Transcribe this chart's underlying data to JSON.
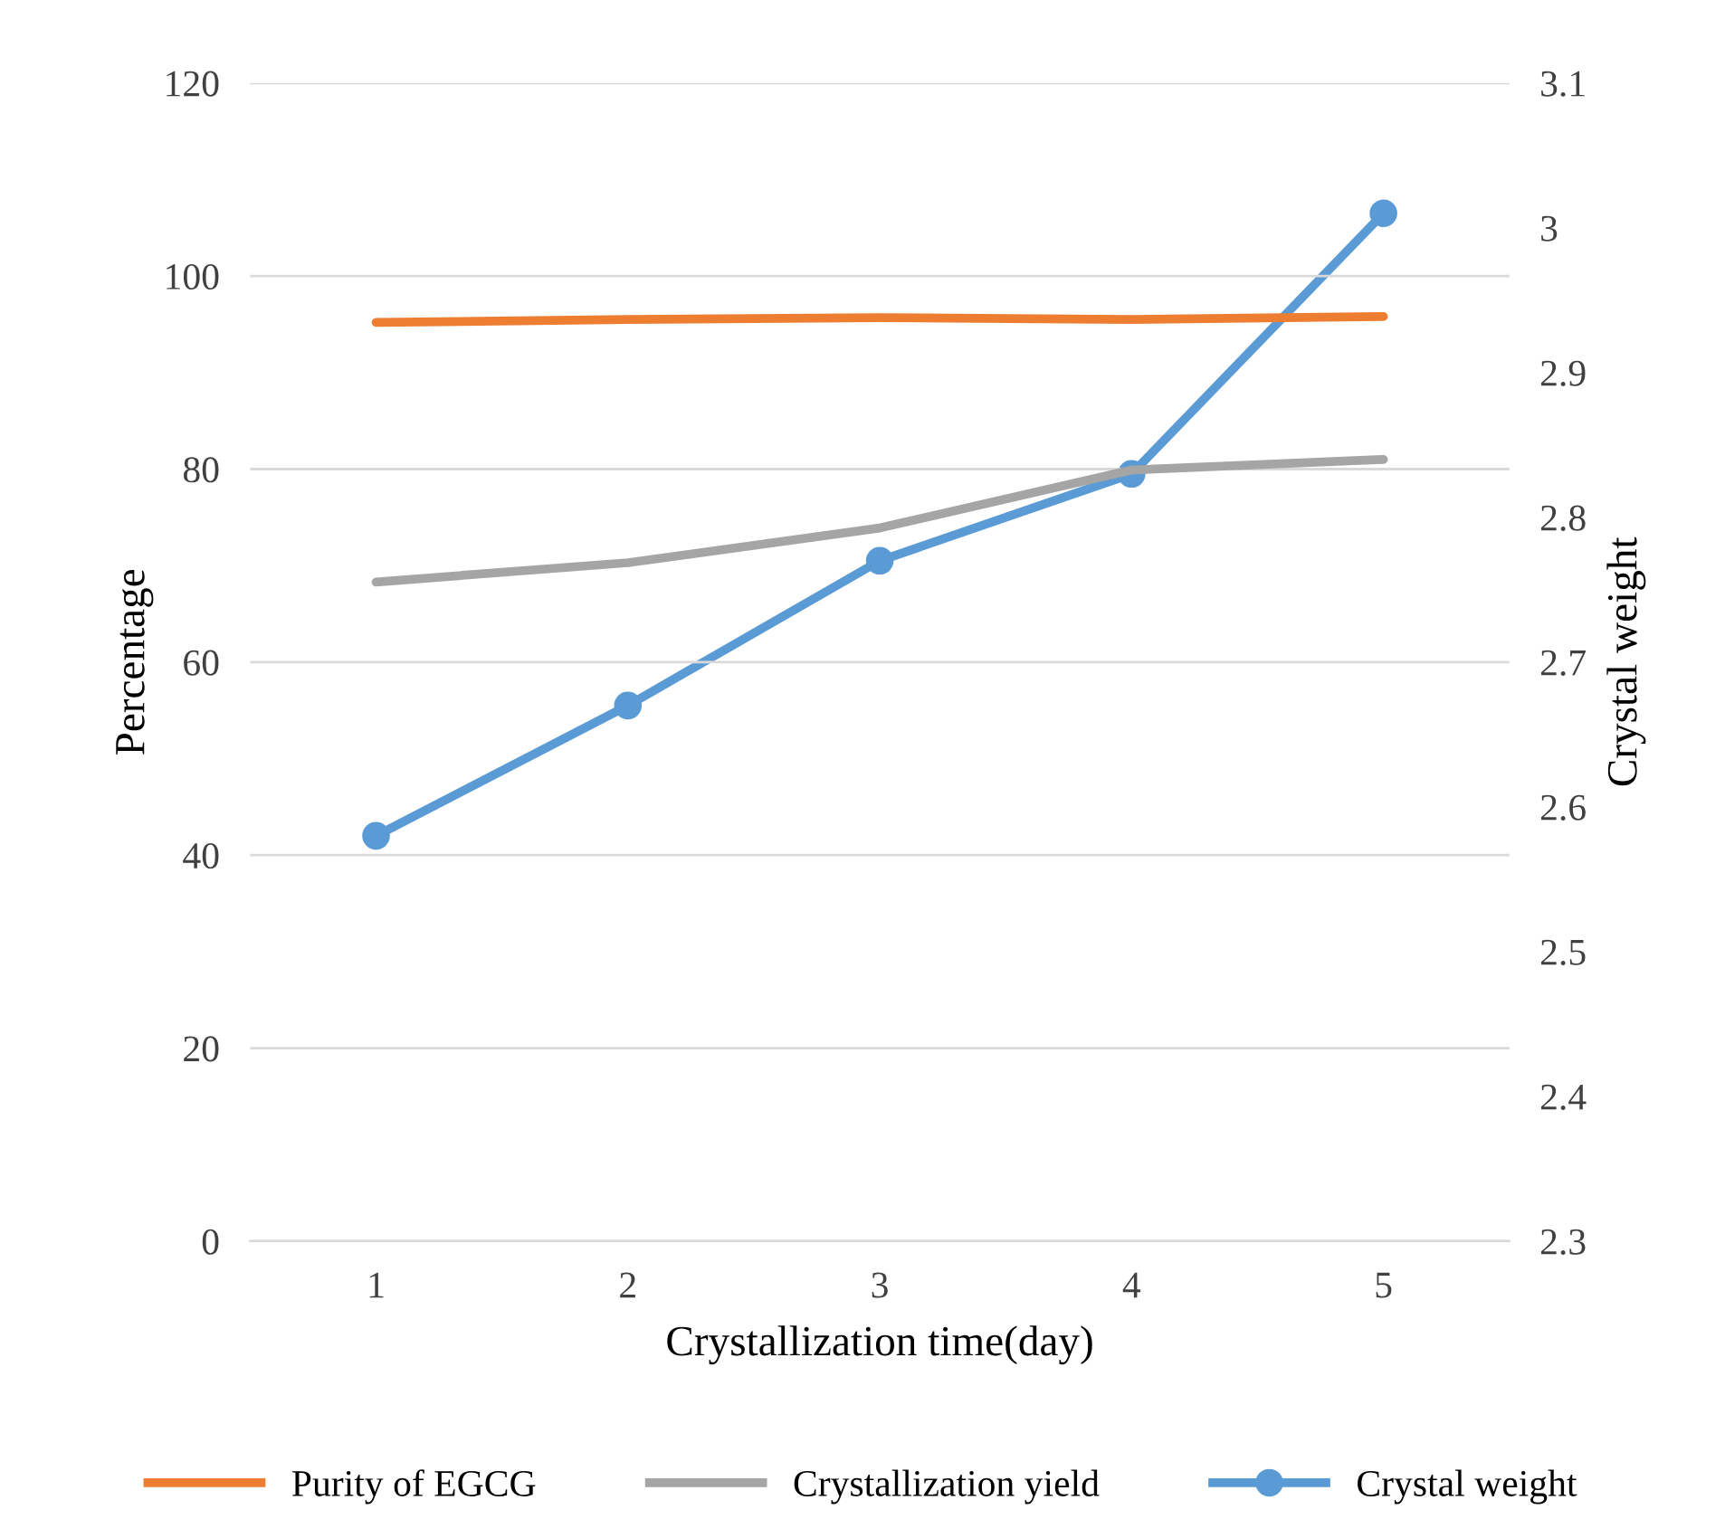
{
  "chart_data": {
    "type": "line",
    "xlabel": "Crystallization time(day)",
    "ylabel": "Percentage",
    "y2label": "Crystal weight",
    "categories": [
      "1",
      "2",
      "3",
      "4",
      "5"
    ],
    "series": [
      {
        "name": "Purity of EGCG",
        "color": "#ed7d31",
        "values": [
          95.2,
          95.5,
          95.7,
          95.5,
          95.8
        ],
        "marker": "none"
      },
      {
        "name": "Crystallization yield",
        "color": "#a5a5a5",
        "values": [
          68.3,
          70.3,
          73.9,
          79.9,
          81.0
        ],
        "marker": "none"
      },
      {
        "name": "Crystal weight",
        "color": "#5b9bd5",
        "values": [
          2.58,
          2.67,
          2.77,
          2.83,
          3.01
        ],
        "axis": "y2",
        "marker": "circle"
      }
    ],
    "ylim": [
      0,
      120
    ],
    "yticks": [
      0,
      20,
      40,
      60,
      80,
      100,
      120
    ],
    "y2lim": [
      2.3,
      3.1
    ],
    "y2ticks": [
      {
        "value": 2.3,
        "label": "2.3"
      },
      {
        "value": 2.4,
        "label": "2.4"
      },
      {
        "value": 2.5,
        "label": "2.5"
      },
      {
        "value": 2.6,
        "label": "2.6"
      },
      {
        "value": 2.7,
        "label": "2.7"
      },
      {
        "value": 2.8,
        "label": "2.8"
      },
      {
        "value": 2.9,
        "label": "2.9"
      },
      {
        "value": 3.0,
        "label": "3"
      },
      {
        "value": 3.1,
        "label": "3.1"
      }
    ],
    "grid": "y",
    "legend": "bottom",
    "line_style": "solid"
  }
}
